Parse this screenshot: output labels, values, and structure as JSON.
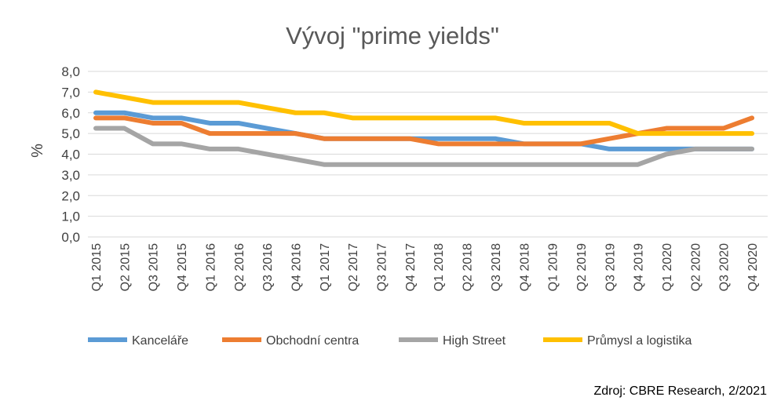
{
  "chart_data": {
    "type": "line",
    "title": "Vývoj \"prime yields\"",
    "xlabel": "",
    "ylabel": "%",
    "ylim": [
      0,
      8
    ],
    "yticks": [
      "0,0",
      "1,0",
      "2,0",
      "3,0",
      "4,0",
      "5,0",
      "6,0",
      "7,0",
      "8,0"
    ],
    "grid": true,
    "legend_position": "bottom",
    "categories": [
      "Q1 2015",
      "Q2 2015",
      "Q3 2015",
      "Q4 2015",
      "Q1 2016",
      "Q2 2016",
      "Q3 2016",
      "Q4 2016",
      "Q1 2017",
      "Q2 2017",
      "Q3 2017",
      "Q4 2017",
      "Q1 2018",
      "Q2 2018",
      "Q3 2018",
      "Q4 2018",
      "Q1 2019",
      "Q2 2019",
      "Q3 2019",
      "Q4 2019",
      "Q1 2020",
      "Q2 2020",
      "Q3 2020",
      "Q4 2020"
    ],
    "series": [
      {
        "name": "Kanceláře",
        "color": "#5B9BD5",
        "values": [
          6.0,
          6.0,
          5.75,
          5.75,
          5.5,
          5.5,
          5.25,
          5.0,
          4.75,
          4.75,
          4.75,
          4.75,
          4.75,
          4.75,
          4.75,
          4.5,
          4.5,
          4.5,
          4.25,
          4.25,
          4.25,
          4.25,
          4.25,
          4.25
        ]
      },
      {
        "name": "Obchodní centra",
        "color": "#ED7D31",
        "values": [
          5.75,
          5.75,
          5.5,
          5.5,
          5.0,
          5.0,
          5.0,
          5.0,
          4.75,
          4.75,
          4.75,
          4.75,
          4.5,
          4.5,
          4.5,
          4.5,
          4.5,
          4.5,
          4.75,
          5.0,
          5.25,
          5.25,
          5.25,
          5.75
        ]
      },
      {
        "name": "High Street",
        "color": "#A5A5A5",
        "values": [
          5.25,
          5.25,
          4.5,
          4.5,
          4.25,
          4.25,
          4.0,
          3.75,
          3.5,
          3.5,
          3.5,
          3.5,
          3.5,
          3.5,
          3.5,
          3.5,
          3.5,
          3.5,
          3.5,
          3.5,
          4.0,
          4.25,
          4.25,
          4.25
        ]
      },
      {
        "name": "Průmysl a logistika",
        "color": "#FFC000",
        "values": [
          7.0,
          6.75,
          6.5,
          6.5,
          6.5,
          6.5,
          6.25,
          6.0,
          6.0,
          5.75,
          5.75,
          5.75,
          5.75,
          5.75,
          5.75,
          5.5,
          5.5,
          5.5,
          5.5,
          5.0,
          5.0,
          5.0,
          5.0,
          5.0
        ]
      }
    ],
    "source": "Zdroj: CBRE Research, 2/2021"
  }
}
